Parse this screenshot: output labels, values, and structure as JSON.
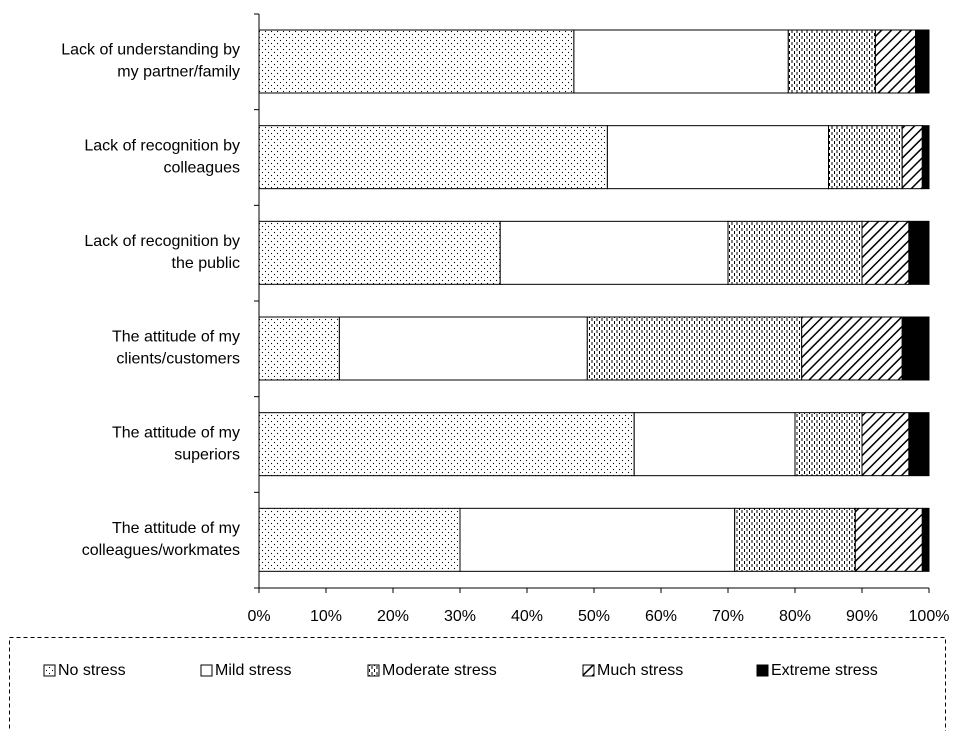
{
  "chart_data": {
    "type": "stacked_barh",
    "categories": [
      [
        "Lack of understanding by",
        "my partner/family"
      ],
      [
        "Lack of recognition by",
        "colleagues"
      ],
      [
        "Lack of recognition by",
        "the public"
      ],
      [
        "The attitude of my",
        "clients/customers"
      ],
      [
        "The attitude of my",
        "superiors"
      ],
      [
        "The attitude of my",
        "colleagues/workmates"
      ]
    ],
    "series": [
      {
        "name": "No stress",
        "color": "#ffffff",
        "pattern": "dots",
        "values": [
          47,
          52,
          36,
          12,
          56,
          30
        ]
      },
      {
        "name": "Mild stress",
        "color": "#ffffff",
        "pattern": "none",
        "values": [
          32,
          33,
          34,
          37,
          24,
          41
        ]
      },
      {
        "name": "Moderate stress",
        "color": "#ffffff",
        "pattern": "dashes",
        "values": [
          13,
          11,
          20,
          32,
          10,
          18
        ]
      },
      {
        "name": "Much stress",
        "color": "#ffffff",
        "pattern": "diagonal",
        "values": [
          6,
          3,
          7,
          15,
          7,
          10
        ]
      },
      {
        "name": "Extreme stress",
        "color": "#000000",
        "pattern": "none",
        "values": [
          2,
          1,
          3,
          4,
          3,
          1
        ]
      }
    ],
    "xlim": [
      0,
      100
    ],
    "xticks": [
      {
        "value": 0,
        "label": "0%"
      },
      {
        "value": 10,
        "label": "10%"
      },
      {
        "value": 20,
        "label": "20%"
      },
      {
        "value": 30,
        "label": "30%"
      },
      {
        "value": 40,
        "label": "40%"
      },
      {
        "value": 50,
        "label": "50%"
      },
      {
        "value": 60,
        "label": "60%"
      },
      {
        "value": 70,
        "label": "70%"
      },
      {
        "value": 80,
        "label": "80%"
      },
      {
        "value": 90,
        "label": "90%"
      },
      {
        "value": 100,
        "label": "100%"
      }
    ],
    "legend": "bottom"
  }
}
